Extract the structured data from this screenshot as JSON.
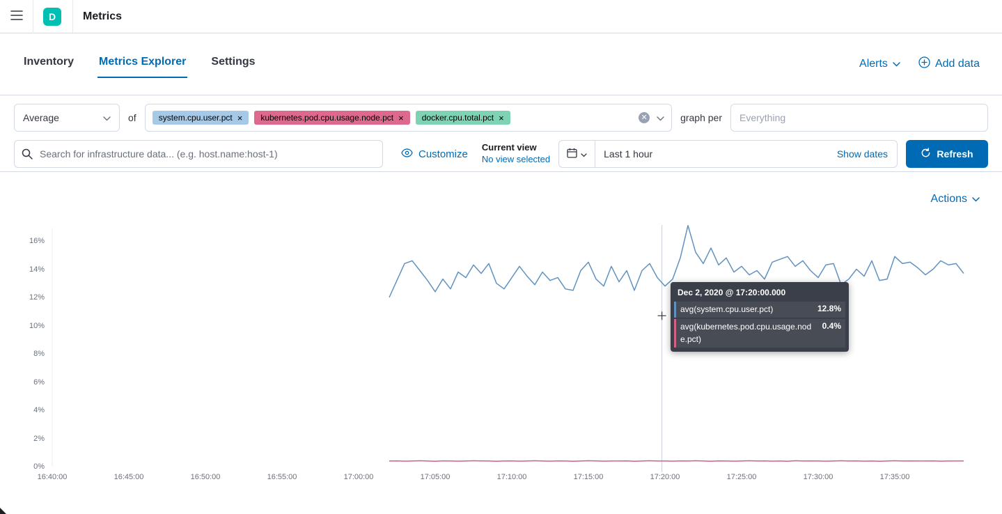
{
  "header": {
    "badge": "D",
    "title": "Metrics"
  },
  "nav": {
    "tabs": [
      {
        "label": "Inventory",
        "active": false
      },
      {
        "label": "Metrics Explorer",
        "active": true
      },
      {
        "label": "Settings",
        "active": false
      }
    ],
    "alerts_label": "Alerts",
    "add_data_label": "Add data"
  },
  "filters": {
    "aggregation_value": "Average",
    "of_label": "of",
    "metric_tags": [
      {
        "label": "system.cpu.user.pct",
        "color": "#a6c9e7"
      },
      {
        "label": "kubernetes.pod.cpu.usage.node.pct",
        "color": "#dd6a8e"
      },
      {
        "label": "docker.cpu.total.pct",
        "color": "#7dd3b4"
      }
    ],
    "graph_per_label": "graph per",
    "graph_per_placeholder": "Everything"
  },
  "search_bar": {
    "placeholder": "Search for infrastructure data... (e.g. host.name:host-1)",
    "customize_label": "Customize",
    "current_view_title": "Current view",
    "current_view_value": "No view selected",
    "time_range_value": "Last 1 hour",
    "show_dates_label": "Show dates",
    "refresh_label": "Refresh"
  },
  "chart_section": {
    "actions_label": "Actions"
  },
  "tooltip": {
    "title": "Dec 2, 2020 @ 17:20:00.000",
    "rows": [
      {
        "label": "avg(system.cpu.user.pct)",
        "value": "12.8%",
        "color": "#6092C0"
      },
      {
        "label": "avg(kubernetes.pod.cpu.usage.node.pct)",
        "value": "0.4%",
        "color": "#D36086"
      }
    ]
  },
  "chart_data": {
    "type": "line",
    "title": "",
    "xlabel": "",
    "ylabel": "",
    "ylim": [
      0,
      17.3
    ],
    "grid": false,
    "legend": "none",
    "x_ticks": [
      {
        "label": "16:40:00",
        "minute": 0
      },
      {
        "label": "16:45:00",
        "minute": 5
      },
      {
        "label": "16:50:00",
        "minute": 10
      },
      {
        "label": "16:55:00",
        "minute": 15
      },
      {
        "label": "17:00:00",
        "minute": 20
      },
      {
        "label": "17:05:00",
        "minute": 25
      },
      {
        "label": "17:10:00",
        "minute": 30
      },
      {
        "label": "17:15:00",
        "minute": 35
      },
      {
        "label": "17:20:00",
        "minute": 40
      },
      {
        "label": "17:25:00",
        "minute": 45
      },
      {
        "label": "17:30:00",
        "minute": 50
      },
      {
        "label": "17:35:00",
        "minute": 55
      }
    ],
    "y_ticks": [
      {
        "label": "0%",
        "value": 0
      },
      {
        "label": "2%",
        "value": 2
      },
      {
        "label": "4%",
        "value": 4
      },
      {
        "label": "6%",
        "value": 6
      },
      {
        "label": "8%",
        "value": 8
      },
      {
        "label": "10%",
        "value": 10
      },
      {
        "label": "12%",
        "value": 12
      },
      {
        "label": "14%",
        "value": 14
      },
      {
        "label": "16%",
        "value": 16
      }
    ],
    "crosshair": {
      "minute": 39.8,
      "time_label": "17:20:00",
      "cursor_value": 10.7
    },
    "series": [
      {
        "name": "avg(system.cpu.user.pct)",
        "color": "#6092C0",
        "start_minute": 22,
        "step_minute": 0.5,
        "values": [
          12.0,
          13.2,
          14.4,
          14.6,
          13.9,
          13.2,
          12.4,
          13.3,
          12.6,
          13.8,
          13.4,
          14.3,
          13.7,
          14.4,
          13.0,
          12.6,
          13.4,
          14.2,
          13.5,
          12.9,
          13.8,
          13.2,
          13.4,
          12.6,
          12.5,
          13.9,
          14.5,
          13.3,
          12.8,
          14.2,
          13.1,
          13.9,
          12.5,
          13.9,
          14.4,
          13.4,
          12.8,
          13.3,
          14.8,
          17.1,
          15.2,
          14.4,
          15.5,
          14.3,
          14.8,
          13.8,
          14.2,
          13.6,
          13.9,
          13.3,
          14.5,
          14.7,
          14.9,
          14.2,
          14.6,
          13.9,
          13.4,
          14.3,
          14.4,
          12.9,
          13.3,
          14.0,
          13.5,
          14.6,
          13.2,
          13.3,
          14.9,
          14.4,
          14.5,
          14.1,
          13.6,
          14.0,
          14.6,
          14.3,
          14.4,
          13.7
        ]
      },
      {
        "name": "avg(kubernetes.pod.cpu.usage.node.pct)",
        "color": "#D36086",
        "start_minute": 22,
        "step_minute": 0.5,
        "values": [
          0.4,
          0.41,
          0.39,
          0.4,
          0.42,
          0.4,
          0.38,
          0.41,
          0.4,
          0.39,
          0.4,
          0.42,
          0.41,
          0.4,
          0.38,
          0.4,
          0.41,
          0.39,
          0.4,
          0.42,
          0.4,
          0.39,
          0.41,
          0.4,
          0.38,
          0.4,
          0.42,
          0.41,
          0.39,
          0.4,
          0.4,
          0.41,
          0.38,
          0.4,
          0.42,
          0.4,
          0.4,
          0.39,
          0.41,
          0.4,
          0.42,
          0.4,
          0.38,
          0.41,
          0.4,
          0.39,
          0.4,
          0.42,
          0.4,
          0.41,
          0.39,
          0.4,
          0.38,
          0.42,
          0.4,
          0.41,
          0.4,
          0.39,
          0.4,
          0.42,
          0.4,
          0.41,
          0.39,
          0.4,
          0.38,
          0.4,
          0.42,
          0.4,
          0.41,
          0.4,
          0.4,
          0.41,
          0.39,
          0.4,
          0.4,
          0.4
        ]
      }
    ]
  }
}
